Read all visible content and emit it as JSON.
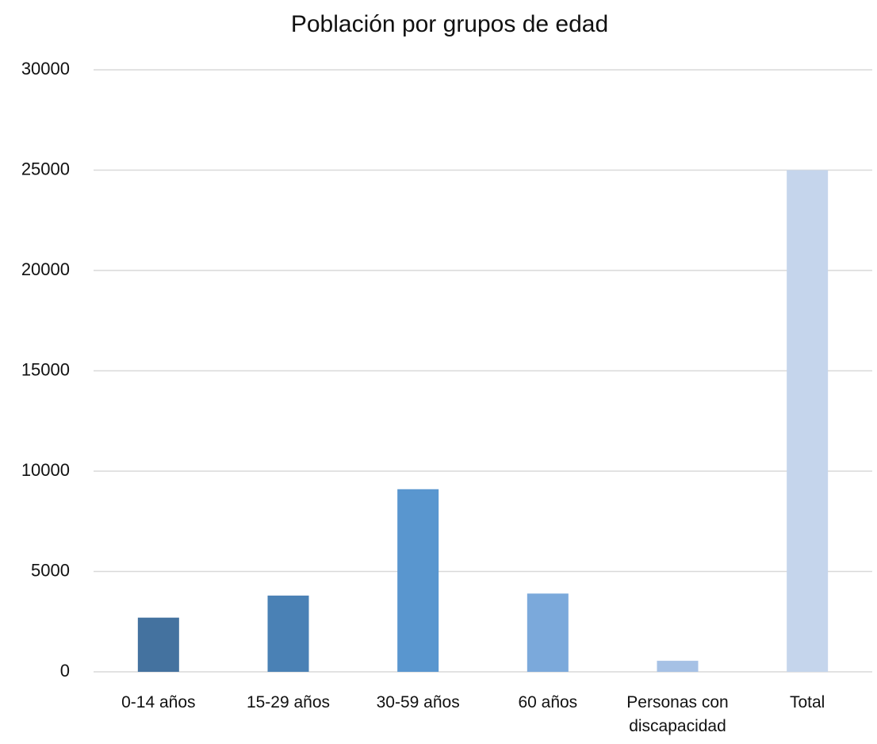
{
  "chart_data": {
    "type": "bar",
    "title": "Población por grupos de edad",
    "categories": [
      "0-14 años",
      "15-29 años",
      "30-59 años",
      "60 años",
      "Personas con discapacidad",
      "Total"
    ],
    "values": [
      2700,
      3800,
      9100,
      3900,
      550,
      25000
    ],
    "colors": [
      "#44729f",
      "#4a81b5",
      "#5996cf",
      "#7ba9db",
      "#a6c1e5",
      "#c5d5ec"
    ],
    "ylim": [
      0,
      30000
    ],
    "yticks": [
      0,
      5000,
      10000,
      15000,
      20000,
      25000,
      30000
    ],
    "grid": true
  }
}
